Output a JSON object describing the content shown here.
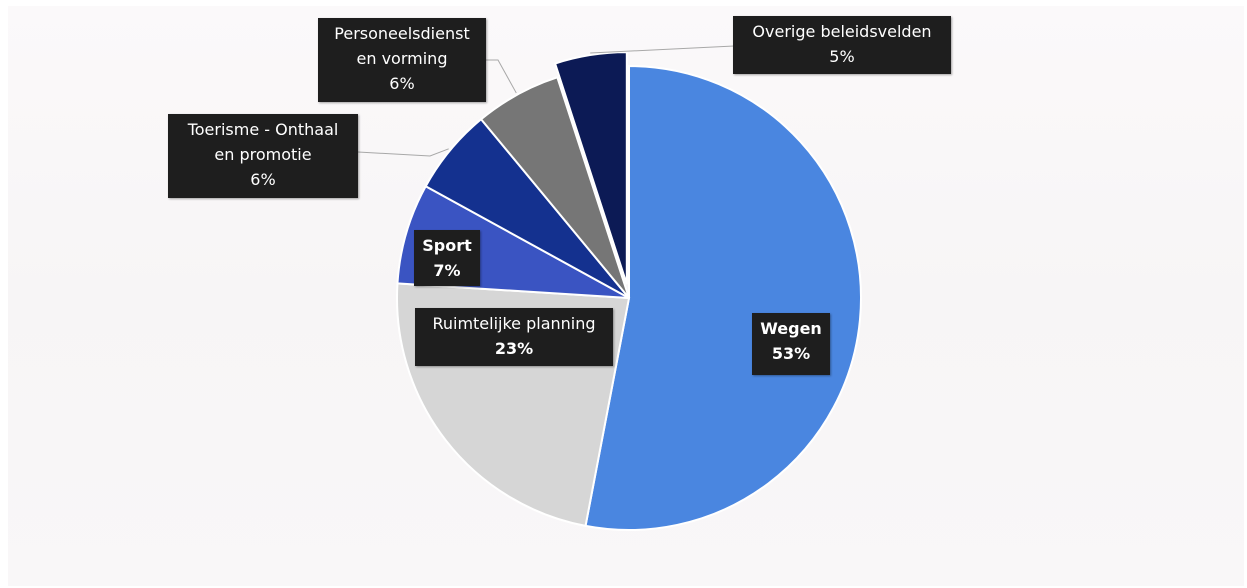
{
  "chart_data": {
    "type": "pie",
    "title": "",
    "slices": [
      {
        "name": "Wegen",
        "label_lines": [
          "Wegen"
        ],
        "value": 53,
        "value_label": "53%",
        "color": "#4a86e0"
      },
      {
        "name": "Ruimtelijke planning",
        "label_lines": [
          "Ruimtelijke planning"
        ],
        "value": 23,
        "value_label": "23%",
        "color": "#d6d6d6"
      },
      {
        "name": "Sport",
        "label_lines": [
          "Sport"
        ],
        "value": 7,
        "value_label": "7%",
        "color": "#3a54c2"
      },
      {
        "name": "Toerisme - Onthaal en promotie",
        "label_lines": [
          "Toerisme - Onthaal",
          "en promotie"
        ],
        "value": 6,
        "value_label": "6%",
        "color": "#14318f"
      },
      {
        "name": "Personeelsdienst en vorming",
        "label_lines": [
          "Personeelsdienst",
          "en vorming"
        ],
        "value": 6,
        "value_label": "6%",
        "color": "#767676"
      },
      {
        "name": "Overige beleidsvelden",
        "label_lines": [
          "Overige beleidsvelden"
        ],
        "value": 5,
        "value_label": "5%",
        "color": "#0c1a55"
      }
    ],
    "start_angle_deg": 0,
    "direction": "clockwise",
    "labels": "data callouts"
  }
}
